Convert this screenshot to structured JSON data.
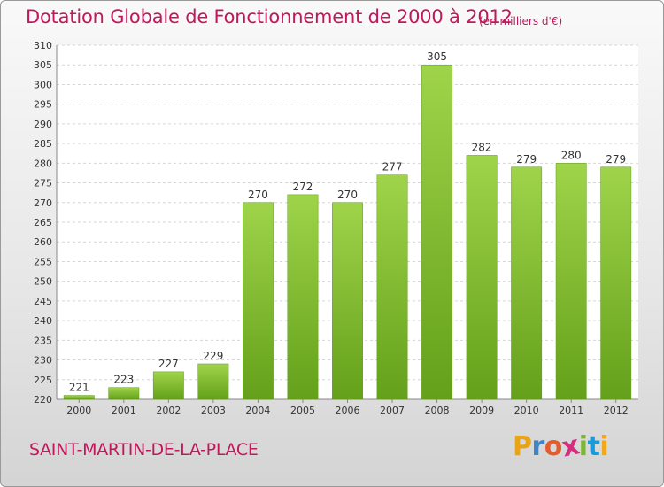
{
  "chart_data": {
    "type": "bar",
    "title": "Dotation Globale de Fonctionnement de 2000 à 2012",
    "unit": "(en milliers d'€)",
    "categories": [
      "2000",
      "2001",
      "2002",
      "2003",
      "2004",
      "2005",
      "2006",
      "2007",
      "2008",
      "2009",
      "2010",
      "2011",
      "2012"
    ],
    "values": [
      221,
      223,
      227,
      229,
      270,
      272,
      270,
      277,
      305,
      282,
      279,
      280,
      279
    ],
    "ylim": [
      220,
      310
    ],
    "yticks": [
      220,
      225,
      230,
      235,
      240,
      245,
      250,
      255,
      260,
      265,
      270,
      275,
      280,
      285,
      290,
      295,
      300,
      305,
      310
    ],
    "grid": true,
    "bar_color": "#86c232"
  },
  "footer": {
    "commune": "SAINT-MARTIN-DE-LA-PLACE",
    "logo_letters": [
      "P",
      "r",
      "o",
      "x",
      "i",
      "t",
      "i"
    ],
    "logo_colors": [
      "#e8a317",
      "#3a86c8",
      "#e35d2c",
      "#d62e7e",
      "#7cb82f",
      "#1a9bd7",
      "#f0a81c"
    ]
  }
}
